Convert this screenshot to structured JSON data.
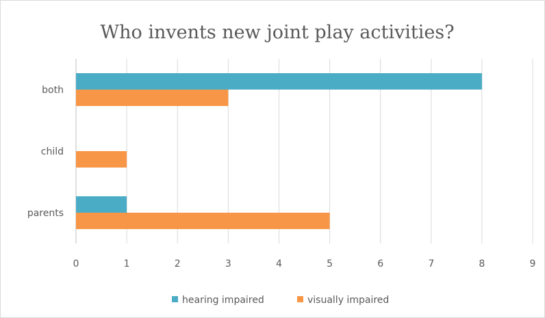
{
  "chart_data": {
    "type": "bar",
    "orientation": "horizontal",
    "title": "Who invents new joint play activities?",
    "categories": [
      "both",
      "child",
      "parents"
    ],
    "series": [
      {
        "name": "hearing impaired",
        "values": [
          8,
          0,
          1
        ],
        "color": "#4bacc6"
      },
      {
        "name": "visually impaired",
        "values": [
          3,
          1,
          5
        ],
        "color": "#f79646"
      }
    ],
    "xlim": [
      0,
      9
    ],
    "xticks": [
      "0",
      "1",
      "2",
      "3",
      "4",
      "5",
      "6",
      "7",
      "8",
      "9"
    ],
    "grid": true,
    "legend": "bottom"
  }
}
